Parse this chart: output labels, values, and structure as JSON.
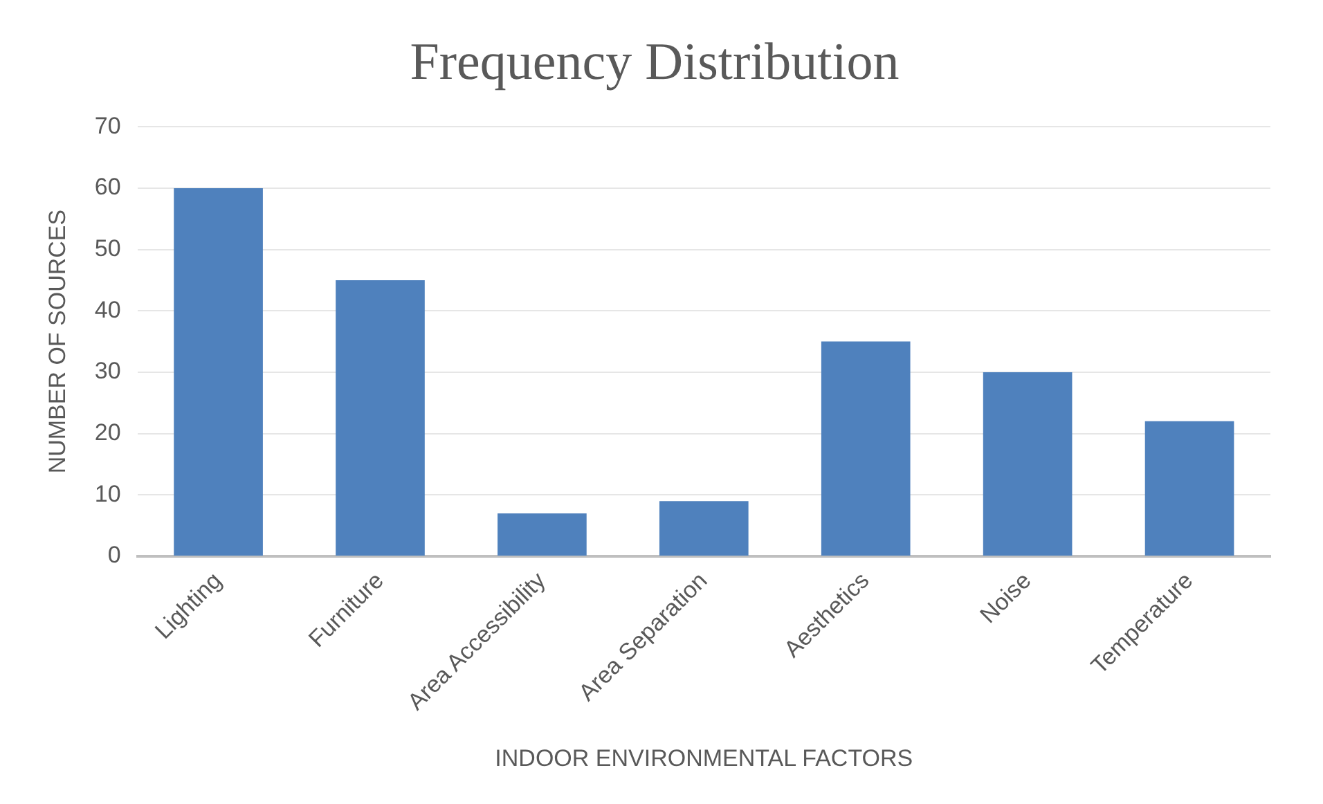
{
  "chart_data": {
    "type": "bar",
    "title": "Frequency Distribution",
    "xlabel": "INDOOR ENVIRONMENTAL FACTORS",
    "ylabel": "NUMBER OF SOURCES",
    "categories": [
      "Lighting",
      "Furniture",
      "Area Accessibility",
      "Area Separation",
      "Aesthetics",
      "Noise",
      "Temperature"
    ],
    "values": [
      60,
      45,
      7,
      9,
      35,
      30,
      22
    ],
    "color": "#4f81bd",
    "ylim": [
      0,
      70
    ],
    "yticks": [
      0,
      10,
      20,
      30,
      40,
      50,
      60,
      70
    ],
    "grid": "y"
  }
}
